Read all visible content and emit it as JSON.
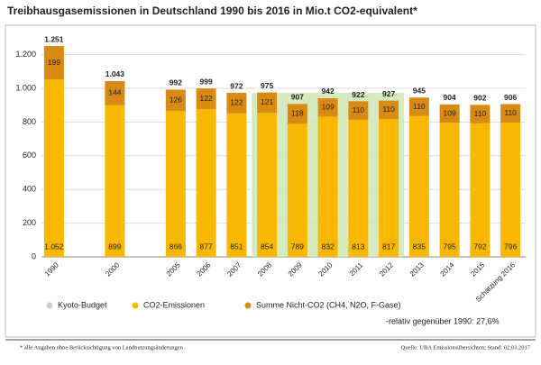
{
  "chart_data": {
    "type": "stacked-bar",
    "title": "Treibhausgasemissionen in Deutschland 1990 bis 2016 in Mio.t CO2-equivalent*",
    "categories": [
      "1990",
      null,
      "2000",
      null,
      "2005",
      "2006",
      "2007",
      "2008",
      "2009",
      "2010",
      "2011",
      "2012",
      "2013",
      "2014",
      "2015",
      "Schätzung 2016"
    ],
    "series": [
      {
        "name": "CO2-Emissionen",
        "color": "#f9b800",
        "values": [
          1052,
          null,
          899,
          null,
          866,
          877,
          851,
          854,
          789,
          832,
          813,
          817,
          835,
          795,
          792,
          796
        ],
        "value_labels": [
          "1.052",
          null,
          "899",
          null,
          "866",
          "877",
          "851",
          "854",
          "789",
          "832",
          "813",
          "817",
          "835",
          "795",
          "792",
          "796"
        ]
      },
      {
        "name": "Summe Nicht-CO2 (CH4, N2O, F-Gase)",
        "color": "#d98a12",
        "values": [
          199,
          null,
          144,
          null,
          126,
          122,
          122,
          121,
          118,
          109,
          110,
          110,
          110,
          109,
          110,
          110
        ]
      }
    ],
    "totals": {
      "values": [
        1251,
        null,
        1043,
        null,
        992,
        999,
        972,
        975,
        907,
        942,
        922,
        927,
        945,
        904,
        902,
        906
      ],
      "value_labels": [
        "1.251",
        null,
        "1.043",
        null,
        "992",
        "999",
        "972",
        "975",
        "907",
        "942",
        "922",
        "927",
        "945",
        "904",
        "902",
        "906"
      ]
    },
    "kyoto": {
      "name": "Kyoto-Budget",
      "color": "#cfe6b4",
      "legend_color": "#cccccc",
      "values": [
        null,
        null,
        null,
        null,
        null,
        null,
        null,
        974,
        974,
        974,
        974,
        974,
        null,
        null,
        null,
        null
      ]
    },
    "ylim": [
      0,
      1310
    ],
    "yticks": [
      0,
      200,
      400,
      600,
      800,
      {
        "value": 1000,
        "label": "1.000"
      },
      {
        "value": 1200,
        "label": "1.200"
      }
    ],
    "grid": true,
    "note": "-relativ gegenüber 1990: 27,6%",
    "footnote": "* alle Angaben ohne Berücksichtigung von Landnutzungsänderungen",
    "source": "Quelle: UBA Emissionsübersichten; Stand: 02.03.2017"
  }
}
